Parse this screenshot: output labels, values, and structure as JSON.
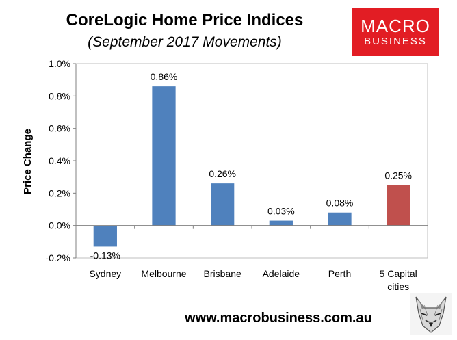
{
  "header": {
    "title": "CoreLogic Home Price Indices",
    "subtitle": "(September 2017 Movements)"
  },
  "logo": {
    "line1": "MACRO",
    "line2": "BUSINESS",
    "color": "#e21d24"
  },
  "footer": {
    "url": "www.macrobusiness.com.au"
  },
  "chart_data": {
    "type": "bar",
    "title": "CoreLogic Home Price Indices",
    "subtitle": "(September 2017 Movements)",
    "ylabel": "Price Change",
    "xlabel": "",
    "categories": [
      "Sydney",
      "Melbourne",
      "Brisbane",
      "Adelaide",
      "Perth",
      "5 Capital cities"
    ],
    "category_lines": [
      [
        "Sydney"
      ],
      [
        "Melbourne"
      ],
      [
        "Brisbane"
      ],
      [
        "Adelaide"
      ],
      [
        "Perth"
      ],
      [
        "5 Capital",
        "cities"
      ]
    ],
    "values": [
      -0.13,
      0.86,
      0.26,
      0.03,
      0.08,
      0.25
    ],
    "data_labels": [
      "-0.13%",
      "0.86%",
      "0.26%",
      "0.03%",
      "0.08%",
      "0.25%"
    ],
    "bar_colors": [
      "#4f81bd",
      "#4f81bd",
      "#4f81bd",
      "#4f81bd",
      "#4f81bd",
      "#c0504d"
    ],
    "ylim": [
      -0.2,
      1.0
    ],
    "yticks": [
      -0.2,
      0.0,
      0.2,
      0.4,
      0.6,
      0.8,
      1.0
    ],
    "ytick_labels": [
      "-0.2%",
      "0.0%",
      "0.2%",
      "0.4%",
      "0.6%",
      "0.8%",
      "1.0%"
    ],
    "grid": false,
    "legend": "none"
  }
}
